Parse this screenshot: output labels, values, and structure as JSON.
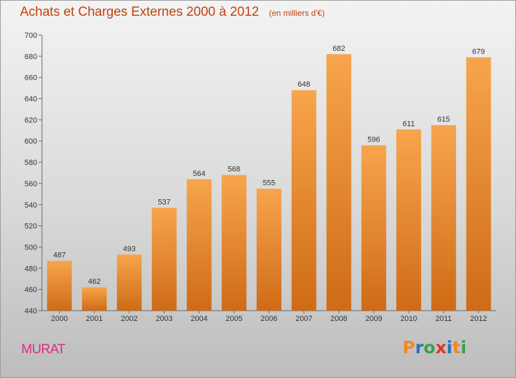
{
  "header": {
    "title": "Achats et Charges Externes 2000 à 2012",
    "subtitle": "(en milliers d'€)"
  },
  "footer": {
    "commune": "MURAT",
    "logo_text": "Proxiti"
  },
  "colors": {
    "title": "#c2410c",
    "commune": "#d6307e",
    "bar_top": "#f7a54d",
    "bar_bottom": "#cf6b16",
    "logo_letters": [
      "#f08a1d",
      "#2f6fb5",
      "#3aa24a",
      "#e0342f",
      "#2f6fb5",
      "#f08a1d",
      "#3aa24a"
    ]
  },
  "chart_data": {
    "type": "bar",
    "title": "Achats et Charges Externes 2000 à 2012",
    "subtitle": "(en milliers d'€)",
    "xlabel": "",
    "ylabel": "",
    "categories": [
      "2000",
      "2001",
      "2002",
      "2003",
      "2004",
      "2005",
      "2006",
      "2007",
      "2008",
      "2009",
      "2010",
      "2011",
      "2012"
    ],
    "values": [
      487,
      462,
      493,
      537,
      564,
      568,
      555,
      648,
      682,
      596,
      611,
      615,
      679
    ],
    "ylim": [
      440,
      700
    ],
    "yticks": [
      440,
      460,
      480,
      500,
      520,
      540,
      560,
      580,
      600,
      620,
      640,
      660,
      680,
      700
    ],
    "grid": false,
    "legend": "none"
  }
}
